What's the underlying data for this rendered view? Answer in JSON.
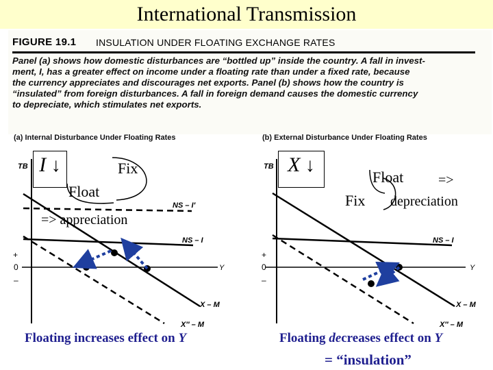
{
  "slide": {
    "title": "International Transmission",
    "figure_number": "FIGURE 19.1",
    "figure_heading": "INSULATION UNDER FLOATING EXCHANGE RATES",
    "caption_lines": [
      "Panel (a) shows how domestic disturbances are “bottled up” inside the country. A fall in invest-",
      "ment, I, has a greater effect on income under a floating rate than under a fixed rate, because",
      "the currency appreciates and discourages net exports. Panel (b) shows how the country is",
      "“insulated” from foreign disturbances. A fall in foreign demand causes the domestic currency",
      "to depreciate, which stimulates net exports."
    ]
  },
  "panel_a": {
    "title": "(a) Internal Disturbance Under Floating Rates",
    "y_axis_label": "TB",
    "x_axis_label": "Y",
    "plus": "+",
    "zero": "0",
    "minus": "–",
    "curve_ns_shift": "NS – I′",
    "curve_ns": "NS – I",
    "curve_xm": "X – M",
    "curve_xm_shift": "X″ – M",
    "shock_var": "I",
    "shock_arrow": "↓",
    "fix_label": "Fix",
    "float_label": "Float",
    "annotation": "=> appreciation",
    "bottom_caption": "Floating increases effect on ",
    "bottom_caption_var": "Y"
  },
  "panel_b": {
    "title": "(b) External Disturbance Under Floating Rates",
    "y_axis_label": "TB",
    "x_axis_label": "Y",
    "plus": "+",
    "zero": "0",
    "minus": "–",
    "curve_ns": "NS – I",
    "curve_xm": "X – M",
    "curve_xm_shift": "X″ – M",
    "shock_var": "X",
    "shock_arrow": "↓",
    "float_label": "Float",
    "arrow_label": "=>",
    "fix_label": "Fix",
    "annotation": "depreciation",
    "bottom_caption_pre": "Floating ",
    "bottom_caption_em": "de",
    "bottom_caption_post": "creases effect on ",
    "bottom_caption_var": "Y",
    "insulation": "= “insulation”"
  },
  "colors": {
    "title_bg": "#ffffcc",
    "arrow_blue": "#1f3f9f",
    "caption_blue": "#1f1f8f"
  }
}
